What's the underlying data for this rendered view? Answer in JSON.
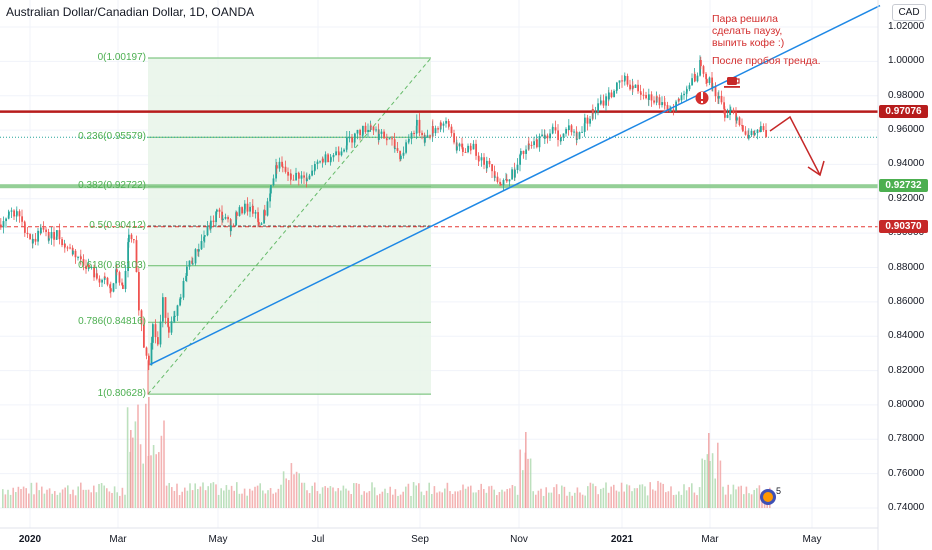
{
  "header": {
    "title": "Australian Dollar/Canadian Dollar, 1D, OANDA",
    "currency": "CAD"
  },
  "annotations": {
    "note1": [
      "Пара решила",
      "сделать паузу,",
      "выпить кофе :)"
    ],
    "note2": "После пробоя тренда."
  },
  "volume_badge": "5",
  "colors": {
    "up_candle": "#26a69a",
    "down_candle": "#ef5350",
    "resistance_line": "#b71c1c",
    "support_band": "#81c784",
    "trendline": "#1e88e5",
    "fib": "#4caf50",
    "fib_fill": "#e8f5e9",
    "dashed_level": "#e53935"
  },
  "chart_data": {
    "type": "candlestick",
    "title": "Australian Dollar/Canadian Dollar, 1D, OANDA",
    "y_axis": {
      "range": [
        0.736,
        1.036
      ],
      "ticks": [
        "1.02000",
        "1.00000",
        "0.98000",
        "0.96000",
        "0.94000",
        "0.92000",
        "0.90000",
        "0.88000",
        "0.86000",
        "0.84000",
        "0.82000",
        "0.80000",
        "0.78000",
        "0.76000",
        "0.74000"
      ]
    },
    "x_axis": {
      "ticks": [
        {
          "label": "2020",
          "year": true
        },
        {
          "label": "Mar",
          "year": false
        },
        {
          "label": "May",
          "year": false
        },
        {
          "label": "Jul",
          "year": false
        },
        {
          "label": "Sep",
          "year": false
        },
        {
          "label": "Nov",
          "year": false
        },
        {
          "label": "2021",
          "year": true
        },
        {
          "label": "Mar",
          "year": false
        },
        {
          "label": "May",
          "year": false
        }
      ]
    },
    "price_labels": [
      {
        "value": "0.97076",
        "color": "#b71c1c"
      },
      {
        "value": "0.92732",
        "color": "#4caf50"
      },
      {
        "value": "0.90370",
        "color": "#c62828"
      }
    ],
    "fibonacci": [
      {
        "ratio": "0",
        "price": 1.00197,
        "label": "0(1.00197)"
      },
      {
        "ratio": "0.236",
        "price": 0.95579,
        "label": "0.236(0.95579)"
      },
      {
        "ratio": "0.382",
        "price": 0.92722,
        "label": "0.382(0.92722)"
      },
      {
        "ratio": "0.5",
        "price": 0.90412,
        "label": "0.5(0.90412)"
      },
      {
        "ratio": "0.618",
        "price": 0.88103,
        "label": "0.618(0.88103)"
      },
      {
        "ratio": "0.786",
        "price": 0.84816,
        "label": "0.786(0.84816)"
      },
      {
        "ratio": "1",
        "price": 0.80628,
        "label": "1(0.80628)"
      }
    ],
    "price_path": [
      [
        0,
        0.905
      ],
      [
        8,
        0.913
      ],
      [
        16,
        0.911
      ],
      [
        24,
        0.903
      ],
      [
        32,
        0.895
      ],
      [
        40,
        0.902
      ],
      [
        48,
        0.897
      ],
      [
        56,
        0.9
      ],
      [
        64,
        0.893
      ],
      [
        72,
        0.889
      ],
      [
        80,
        0.885
      ],
      [
        88,
        0.88
      ],
      [
        96,
        0.874
      ],
      [
        104,
        0.872
      ],
      [
        110,
        0.866
      ],
      [
        116,
        0.878
      ],
      [
        122,
        0.866
      ],
      [
        128,
        0.897
      ],
      [
        133,
        0.893
      ],
      [
        138,
        0.858
      ],
      [
        143,
        0.835
      ],
      [
        148,
        0.826
      ],
      [
        152,
        0.846
      ],
      [
        157,
        0.835
      ],
      [
        162,
        0.86
      ],
      [
        168,
        0.845
      ],
      [
        174,
        0.85
      ],
      [
        180,
        0.862
      ],
      [
        186,
        0.88
      ],
      [
        192,
        0.885
      ],
      [
        198,
        0.892
      ],
      [
        204,
        0.899
      ],
      [
        210,
        0.905
      ],
      [
        216,
        0.912
      ],
      [
        222,
        0.909
      ],
      [
        230,
        0.904
      ],
      [
        236,
        0.911
      ],
      [
        244,
        0.915
      ],
      [
        252,
        0.913
      ],
      [
        258,
        0.905
      ],
      [
        264,
        0.912
      ],
      [
        270,
        0.927
      ],
      [
        276,
        0.94
      ],
      [
        282,
        0.937
      ],
      [
        290,
        0.932
      ],
      [
        298,
        0.934
      ],
      [
        306,
        0.93
      ],
      [
        314,
        0.938
      ],
      [
        322,
        0.943
      ],
      [
        330,
        0.945
      ],
      [
        338,
        0.948
      ],
      [
        346,
        0.953
      ],
      [
        354,
        0.957
      ],
      [
        362,
        0.96
      ],
      [
        370,
        0.963
      ],
      [
        378,
        0.957
      ],
      [
        386,
        0.955
      ],
      [
        394,
        0.95
      ],
      [
        400,
        0.945
      ],
      [
        408,
        0.955
      ],
      [
        416,
        0.963
      ],
      [
        424,
        0.955
      ],
      [
        432,
        0.96
      ],
      [
        440,
        0.964
      ],
      [
        448,
        0.962
      ],
      [
        456,
        0.95
      ],
      [
        462,
        0.948
      ],
      [
        470,
        0.951
      ],
      [
        478,
        0.945
      ],
      [
        486,
        0.94
      ],
      [
        494,
        0.935
      ],
      [
        500,
        0.928
      ],
      [
        506,
        0.933
      ],
      [
        514,
        0.935
      ],
      [
        520,
        0.945
      ],
      [
        528,
        0.95
      ],
      [
        536,
        0.953
      ],
      [
        544,
        0.957
      ],
      [
        552,
        0.96
      ],
      [
        560,
        0.955
      ],
      [
        568,
        0.962
      ],
      [
        576,
        0.955
      ],
      [
        584,
        0.965
      ],
      [
        592,
        0.97
      ],
      [
        600,
        0.975
      ],
      [
        608,
        0.98
      ],
      [
        616,
        0.985
      ],
      [
        624,
        0.989
      ],
      [
        632,
        0.985
      ],
      [
        640,
        0.983
      ],
      [
        648,
        0.98
      ],
      [
        656,
        0.978
      ],
      [
        664,
        0.972
      ],
      [
        670,
        0.973
      ],
      [
        678,
        0.977
      ],
      [
        686,
        0.985
      ],
      [
        694,
        0.99
      ],
      [
        700,
        1.0
      ],
      [
        706,
        0.99
      ],
      [
        712,
        0.985
      ],
      [
        718,
        0.978
      ],
      [
        724,
        0.97
      ],
      [
        730,
        0.972
      ],
      [
        736,
        0.968
      ],
      [
        742,
        0.962
      ],
      [
        748,
        0.956
      ],
      [
        754,
        0.958
      ],
      [
        760,
        0.96
      ],
      [
        766,
        0.957
      ]
    ]
  }
}
